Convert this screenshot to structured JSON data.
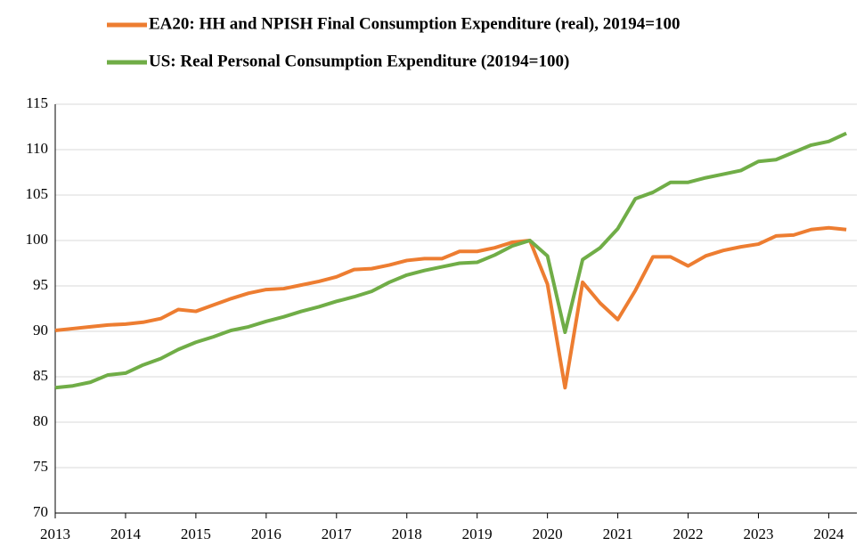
{
  "chart_data": {
    "type": "line",
    "x": [
      2013,
      2013.25,
      2013.5,
      2013.75,
      2014,
      2014.25,
      2014.5,
      2014.75,
      2015,
      2015.25,
      2015.5,
      2015.75,
      2016,
      2016.25,
      2016.5,
      2016.75,
      2017,
      2017.25,
      2017.5,
      2017.75,
      2018,
      2018.25,
      2018.5,
      2018.75,
      2019,
      2019.25,
      2019.5,
      2019.75,
      2020,
      2020.25,
      2020.5,
      2020.75,
      2021,
      2021.25,
      2021.5,
      2021.75,
      2022,
      2022.25,
      2022.5,
      2022.75,
      2023,
      2023.25,
      2023.5,
      2023.75,
      2024,
      2024.25
    ],
    "series": [
      {
        "name": "EA20: HH and NPISH Final Consumption Expenditure (real), 20194=100",
        "color": "#ed7d31",
        "values": [
          90.1,
          90.3,
          90.5,
          90.7,
          90.8,
          91.0,
          91.4,
          92.4,
          92.2,
          92.9,
          93.6,
          94.2,
          94.6,
          94.7,
          95.1,
          95.5,
          96.0,
          96.8,
          96.9,
          97.3,
          97.8,
          98.0,
          98.0,
          98.8,
          98.8,
          99.2,
          99.8,
          100.0,
          95.2,
          83.8,
          95.4,
          93.1,
          91.3,
          94.5,
          98.2,
          98.2,
          97.2,
          98.3,
          98.9,
          99.3,
          99.6,
          100.5,
          100.6,
          101.2,
          101.4,
          101.2
        ]
      },
      {
        "name": "US: Real Personal Consumption Expenditure (20194=100)",
        "color": "#70ad47",
        "values": [
          83.8,
          84.0,
          84.4,
          85.2,
          85.4,
          86.3,
          87.0,
          88.0,
          88.8,
          89.4,
          90.1,
          90.5,
          91.1,
          91.6,
          92.2,
          92.7,
          93.3,
          93.8,
          94.4,
          95.4,
          96.2,
          96.7,
          97.1,
          97.5,
          97.6,
          98.4,
          99.4,
          100.0,
          98.3,
          89.9,
          97.9,
          99.2,
          101.3,
          104.6,
          105.3,
          106.4,
          106.4,
          106.9,
          107.3,
          107.7,
          108.7,
          108.9,
          109.7,
          110.5,
          110.9,
          111.8
        ]
      }
    ],
    "xlim": [
      2013,
      2024.4
    ],
    "xticks": [
      2013,
      2014,
      2015,
      2016,
      2017,
      2018,
      2019,
      2020,
      2021,
      2022,
      2023,
      2024
    ],
    "ylim": [
      70,
      115
    ],
    "yticks": [
      70,
      75,
      80,
      85,
      90,
      95,
      100,
      105,
      110,
      115
    ],
    "grid": true
  }
}
